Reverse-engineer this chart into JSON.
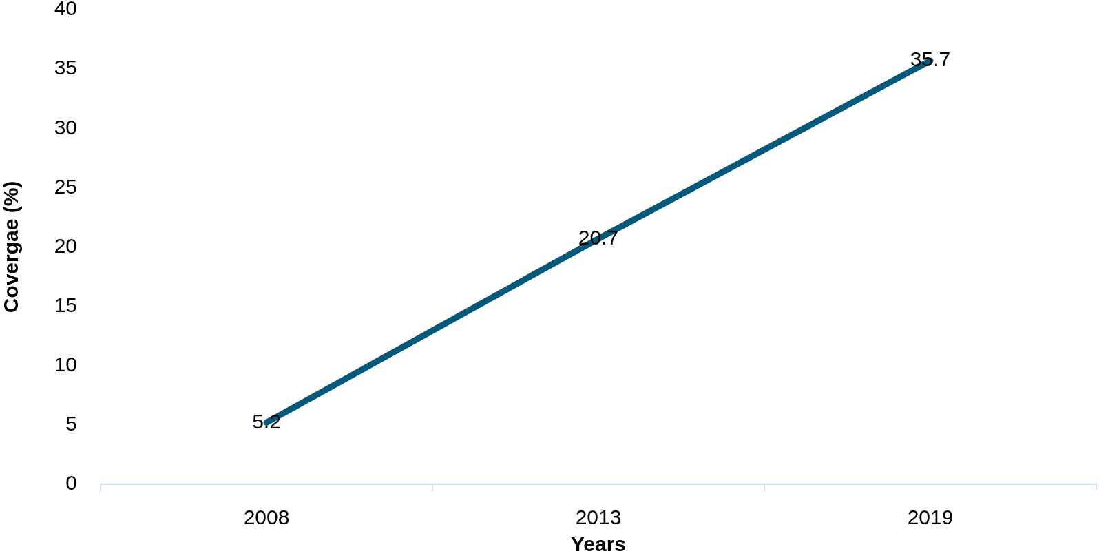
{
  "chart_data": {
    "type": "line",
    "xlabel": "Years",
    "ylabel": "Covergae (%)",
    "categories": [
      "2008",
      "2013",
      "2019"
    ],
    "series": [
      {
        "color": "#00587a",
        "values": [
          5.2,
          20.7,
          35.7
        ]
      }
    ],
    "ylim": [
      0,
      40
    ],
    "yticks": [
      0,
      5,
      10,
      15,
      20,
      25,
      30,
      35,
      40
    ],
    "data_labels": true,
    "grid": false,
    "legend": false,
    "marker": "none",
    "line_style": "solid"
  }
}
